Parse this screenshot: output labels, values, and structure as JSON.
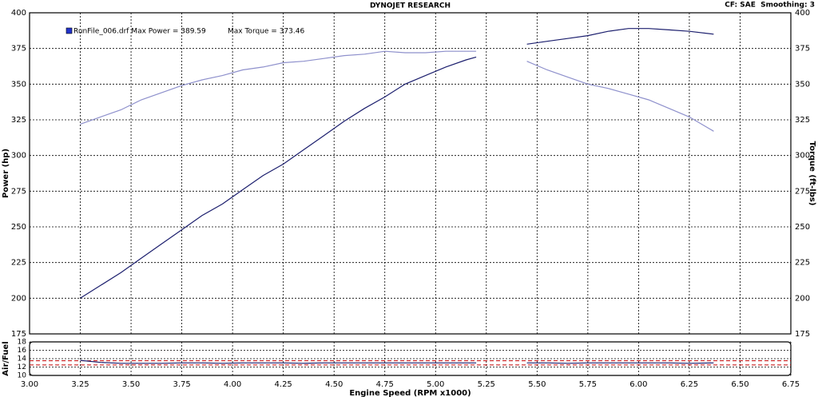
{
  "chart_data": [
    {
      "type": "line",
      "title": "DYNOJET RESEARCH",
      "annotations": [
        "CF: SAE  Smoothing: 3",
        "RunFile_006.drf Max Power = 389.59",
        "Max Torque = 373.46"
      ],
      "ylabel": "Power (hp)",
      "y2label": "Torque (ft-lbs)",
      "x": [
        3.25,
        3.35,
        3.45,
        3.55,
        3.65,
        3.75,
        3.85,
        3.95,
        4.05,
        4.15,
        4.25,
        4.35,
        4.45,
        4.55,
        4.65,
        4.75,
        4.85,
        4.95,
        5.05,
        5.15,
        5.2,
        5.3,
        5.45,
        5.55,
        5.65,
        5.75,
        5.85,
        5.95,
        6.05,
        6.15,
        6.25,
        6.37
      ],
      "series": [
        {
          "name": "Power",
          "color": "#1c1f6e",
          "values": [
            200,
            209,
            218,
            228,
            238,
            248,
            258,
            266,
            276,
            286,
            294,
            304,
            314,
            324,
            333,
            341,
            350,
            356,
            362,
            367,
            369,
            null,
            378,
            380,
            382,
            384,
            387,
            389,
            389,
            388,
            387,
            385
          ]
        },
        {
          "name": "Torque",
          "color": "#8e90cc",
          "axis": "y2",
          "values": [
            322,
            327,
            332,
            339,
            344,
            349,
            353,
            356,
            360,
            362,
            365,
            366,
            368,
            370,
            371,
            373,
            372,
            372,
            373,
            373,
            373,
            null,
            366,
            360,
            355,
            350,
            347,
            343,
            339,
            333,
            327,
            317
          ]
        }
      ],
      "xlim": [
        3,
        6.75
      ],
      "xticks": [
        3,
        3.25,
        3.5,
        3.75,
        4,
        4.25,
        4.5,
        4.75,
        5,
        5.25,
        5.5,
        5.75,
        6,
        6.25,
        6.5,
        6.75
      ],
      "ylim": [
        175,
        400
      ],
      "yticks": [
        175,
        200,
        225,
        250,
        275,
        300,
        325,
        350,
        375,
        400
      ],
      "y2lim": [
        175,
        400
      ],
      "y2ticks": [
        175,
        200,
        225,
        250,
        275,
        300,
        325,
        350,
        375,
        400
      ],
      "grid": true
    },
    {
      "type": "line",
      "ylabel": "Air/Fuel",
      "xlabel": "Engine Speed (RPM x1000)",
      "x": [
        3.25,
        3.35,
        3.45,
        3.55,
        3.65,
        3.75,
        3.85,
        3.95,
        4.05,
        4.15,
        4.25,
        4.35,
        4.45,
        4.55,
        4.65,
        4.75,
        4.85,
        4.95,
        5.05,
        5.15,
        5.2,
        5.3,
        5.45,
        5.55,
        5.65,
        5.75,
        5.85,
        5.95,
        6.05,
        6.15,
        6.25,
        6.37
      ],
      "series": [
        {
          "name": "Air/Fuel",
          "color": "#1c1f6e",
          "values": [
            13.6,
            13.1,
            12.9,
            12.9,
            12.9,
            13,
            13,
            12.9,
            13,
            13,
            13,
            12.9,
            13,
            13,
            13,
            13,
            13,
            13,
            13,
            13,
            13,
            null,
            13,
            13,
            12.9,
            13,
            13,
            13,
            13,
            13,
            12.9,
            13
          ]
        }
      ],
      "reference_lines": [
        12.5,
        13.5
      ],
      "reference_color": "#c00000",
      "xlim": [
        3,
        6.75
      ],
      "xticks": [
        {
          "value": 3,
          "label": "3.00"
        },
        {
          "value": 3.25,
          "label": "3.25"
        },
        {
          "value": 3.5,
          "label": "3.50"
        },
        {
          "value": 3.75,
          "label": "3.75"
        },
        {
          "value": 4,
          "label": "4.00"
        },
        {
          "value": 4.25,
          "label": "4.25"
        },
        {
          "value": 4.5,
          "label": "4.50"
        },
        {
          "value": 4.75,
          "label": "4.75"
        },
        {
          "value": 5,
          "label": "5.00"
        },
        {
          "value": 5.25,
          "label": "5.25"
        },
        {
          "value": 5.5,
          "label": "5.50"
        },
        {
          "value": 5.75,
          "label": "5.75"
        },
        {
          "value": 6,
          "label": "6.00"
        },
        {
          "value": 6.25,
          "label": "6.25"
        },
        {
          "value": 6.5,
          "label": "6.50"
        },
        {
          "value": 6.75,
          "label": "6.75"
        }
      ],
      "ylim": [
        10,
        18
      ],
      "yticks": [
        10,
        12,
        14,
        16,
        18
      ],
      "grid": true
    }
  ]
}
